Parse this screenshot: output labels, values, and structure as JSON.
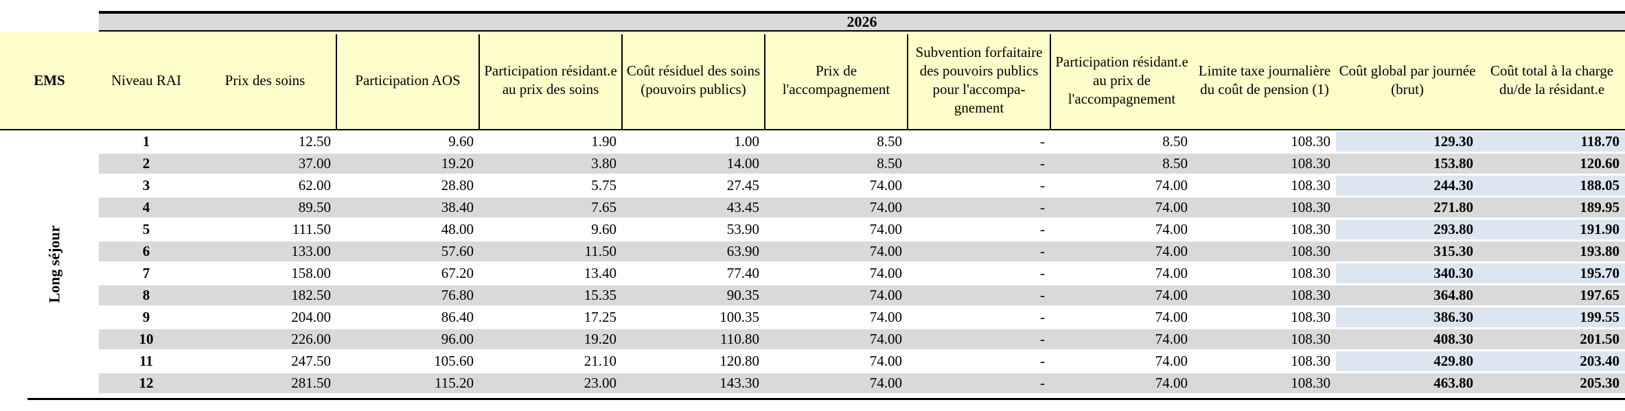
{
  "year": "2026",
  "group_label": "Long séjour",
  "headers": {
    "ems": "EMS",
    "niveau_rai": "Niveau RAI",
    "prix_soins": "Prix des soins",
    "participation_aos": "Participation AOS",
    "participation_resident_soins": "Participation résidant.e au prix des soins",
    "cout_residuel": "Coût résiduel des soins (pouvoirs publics)",
    "prix_accompagnement": "Prix de l'accompagnement",
    "subvention": "Subvention forfaitaire des pouvoirs publics pour l'accompa-gnement",
    "participation_resident_accomp": "Participation résidant.e au prix de l'accompagnement",
    "limite_taxe": "Limite taxe journalière du coût de pension (1)",
    "cout_global": "Coût global par journée (brut)",
    "cout_total": "Coût total à la charge du/de la résidant.e"
  },
  "rows": [
    {
      "niveau": "1",
      "prix_soins": "12.50",
      "aos": "9.60",
      "part_soins": "1.90",
      "residuel": "1.00",
      "prix_acc": "8.50",
      "subv": "-",
      "part_acc": "8.50",
      "limite": "108.30",
      "global": "129.30",
      "total": "118.70"
    },
    {
      "niveau": "2",
      "prix_soins": "37.00",
      "aos": "19.20",
      "part_soins": "3.80",
      "residuel": "14.00",
      "prix_acc": "8.50",
      "subv": "-",
      "part_acc": "8.50",
      "limite": "108.30",
      "global": "153.80",
      "total": "120.60"
    },
    {
      "niveau": "3",
      "prix_soins": "62.00",
      "aos": "28.80",
      "part_soins": "5.75",
      "residuel": "27.45",
      "prix_acc": "74.00",
      "subv": "-",
      "part_acc": "74.00",
      "limite": "108.30",
      "global": "244.30",
      "total": "188.05"
    },
    {
      "niveau": "4",
      "prix_soins": "89.50",
      "aos": "38.40",
      "part_soins": "7.65",
      "residuel": "43.45",
      "prix_acc": "74.00",
      "subv": "-",
      "part_acc": "74.00",
      "limite": "108.30",
      "global": "271.80",
      "total": "189.95"
    },
    {
      "niveau": "5",
      "prix_soins": "111.50",
      "aos": "48.00",
      "part_soins": "9.60",
      "residuel": "53.90",
      "prix_acc": "74.00",
      "subv": "-",
      "part_acc": "74.00",
      "limite": "108.30",
      "global": "293.80",
      "total": "191.90"
    },
    {
      "niveau": "6",
      "prix_soins": "133.00",
      "aos": "57.60",
      "part_soins": "11.50",
      "residuel": "63.90",
      "prix_acc": "74.00",
      "subv": "-",
      "part_acc": "74.00",
      "limite": "108.30",
      "global": "315.30",
      "total": "193.80"
    },
    {
      "niveau": "7",
      "prix_soins": "158.00",
      "aos": "67.20",
      "part_soins": "13.40",
      "residuel": "77.40",
      "prix_acc": "74.00",
      "subv": "-",
      "part_acc": "74.00",
      "limite": "108.30",
      "global": "340.30",
      "total": "195.70"
    },
    {
      "niveau": "8",
      "prix_soins": "182.50",
      "aos": "76.80",
      "part_soins": "15.35",
      "residuel": "90.35",
      "prix_acc": "74.00",
      "subv": "-",
      "part_acc": "74.00",
      "limite": "108.30",
      "global": "364.80",
      "total": "197.65"
    },
    {
      "niveau": "9",
      "prix_soins": "204.00",
      "aos": "86.40",
      "part_soins": "17.25",
      "residuel": "100.35",
      "prix_acc": "74.00",
      "subv": "-",
      "part_acc": "74.00",
      "limite": "108.30",
      "global": "386.30",
      "total": "199.55"
    },
    {
      "niveau": "10",
      "prix_soins": "226.00",
      "aos": "96.00",
      "part_soins": "19.20",
      "residuel": "110.80",
      "prix_acc": "74.00",
      "subv": "-",
      "part_acc": "74.00",
      "limite": "108.30",
      "global": "408.30",
      "total": "201.50"
    },
    {
      "niveau": "11",
      "prix_soins": "247.50",
      "aos": "105.60",
      "part_soins": "21.10",
      "residuel": "120.80",
      "prix_acc": "74.00",
      "subv": "-",
      "part_acc": "74.00",
      "limite": "108.30",
      "global": "429.80",
      "total": "203.40"
    },
    {
      "niveau": "12",
      "prix_soins": "281.50",
      "aos": "115.20",
      "part_soins": "23.00",
      "residuel": "143.30",
      "prix_acc": "74.00",
      "subv": "-",
      "part_acc": "74.00",
      "limite": "108.30",
      "global": "463.80",
      "total": "205.30"
    }
  ],
  "colors": {
    "header_bg": "#ffffcc",
    "band_bg": "#d9d9d9",
    "alt_row_bg": "#d9d9d9",
    "highlight_bg": "#dce6f1"
  }
}
